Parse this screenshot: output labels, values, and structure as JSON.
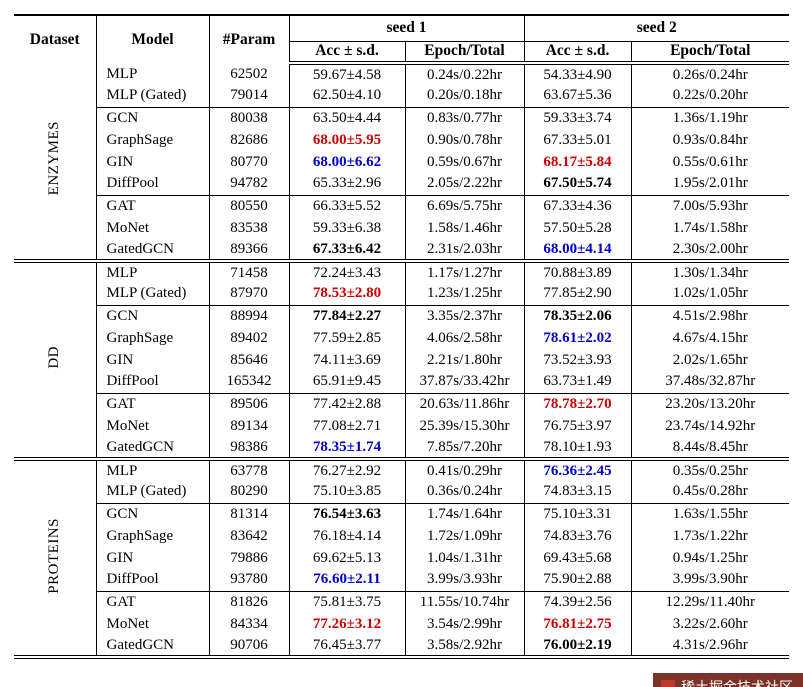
{
  "header": {
    "dataset": "Dataset",
    "model": "Model",
    "param": "#Param",
    "seed1": "seed 1",
    "seed2": "seed 2",
    "acc_label": "Acc ± s.d.",
    "epoch_label": "Epoch/Total"
  },
  "colors": {
    "best_red": "#cc0000",
    "runnerup_blue": "#0000cc"
  },
  "watermark": {
    "text": "稀土掘金技术社区"
  },
  "groups": [
    {
      "dataset": "ENZYMES",
      "subgroups": [
        {
          "rows": [
            {
              "model": "MLP",
              "param": "62502",
              "s1_acc": "59.67±4.58",
              "s1_style": "normal",
              "s1_time": "0.24s/0.22hr",
              "s2_acc": "54.33±4.90",
              "s2_style": "normal",
              "s2_time": "0.26s/0.24hr"
            },
            {
              "model": "MLP (Gated)",
              "param": "79014",
              "s1_acc": "62.50±4.10",
              "s1_style": "normal",
              "s1_time": "0.20s/0.18hr",
              "s2_acc": "63.67±5.36",
              "s2_style": "normal",
              "s2_time": "0.22s/0.20hr"
            }
          ]
        },
        {
          "rows": [
            {
              "model": "GCN",
              "param": "80038",
              "s1_acc": "63.50±4.44",
              "s1_style": "normal",
              "s1_time": "0.83s/0.77hr",
              "s2_acc": "59.33±3.74",
              "s2_style": "normal",
              "s2_time": "1.36s/1.19hr"
            },
            {
              "model": "GraphSage",
              "param": "82686",
              "s1_acc": "68.00±5.95",
              "s1_style": "red",
              "s1_time": "0.90s/0.78hr",
              "s2_acc": "67.33±5.01",
              "s2_style": "normal",
              "s2_time": "0.93s/0.84hr"
            },
            {
              "model": "GIN",
              "param": "80770",
              "s1_acc": "68.00±6.62",
              "s1_style": "blue",
              "s1_time": "0.59s/0.67hr",
              "s2_acc": "68.17±5.84",
              "s2_style": "red",
              "s2_time": "0.55s/0.61hr"
            },
            {
              "model": "DiffPool",
              "param": "94782",
              "s1_acc": "65.33±2.96",
              "s1_style": "normal",
              "s1_time": "2.05s/2.22hr",
              "s2_acc": "67.50±5.74",
              "s2_style": "bold",
              "s2_time": "1.95s/2.01hr"
            }
          ]
        },
        {
          "rows": [
            {
              "model": "GAT",
              "param": "80550",
              "s1_acc": "66.33±5.52",
              "s1_style": "normal",
              "s1_time": "6.69s/5.75hr",
              "s2_acc": "67.33±4.36",
              "s2_style": "normal",
              "s2_time": "7.00s/5.93hr"
            },
            {
              "model": "MoNet",
              "param": "83538",
              "s1_acc": "59.33±6.38",
              "s1_style": "normal",
              "s1_time": "1.58s/1.46hr",
              "s2_acc": "57.50±5.28",
              "s2_style": "normal",
              "s2_time": "1.74s/1.58hr"
            },
            {
              "model": "GatedGCN",
              "param": "89366",
              "s1_acc": "67.33±6.42",
              "s1_style": "bold",
              "s1_time": "2.31s/2.03hr",
              "s2_acc": "68.00±4.14",
              "s2_style": "blue",
              "s2_time": "2.30s/2.00hr"
            }
          ]
        }
      ]
    },
    {
      "dataset": "DD",
      "subgroups": [
        {
          "rows": [
            {
              "model": "MLP",
              "param": "71458",
              "s1_acc": "72.24±3.43",
              "s1_style": "normal",
              "s1_time": "1.17s/1.27hr",
              "s2_acc": "70.88±3.89",
              "s2_style": "normal",
              "s2_time": "1.30s/1.34hr"
            },
            {
              "model": "MLP (Gated)",
              "param": "87970",
              "s1_acc": "78.53±2.80",
              "s1_style": "red",
              "s1_time": "1.23s/1.25hr",
              "s2_acc": "77.85±2.90",
              "s2_style": "normal",
              "s2_time": "1.02s/1.05hr"
            }
          ]
        },
        {
          "rows": [
            {
              "model": "GCN",
              "param": "88994",
              "s1_acc": "77.84±2.27",
              "s1_style": "bold",
              "s1_time": "3.35s/2.37hr",
              "s2_acc": "78.35±2.06",
              "s2_style": "bold",
              "s2_time": "4.51s/2.98hr"
            },
            {
              "model": "GraphSage",
              "param": "89402",
              "s1_acc": "77.59±2.85",
              "s1_style": "normal",
              "s1_time": "4.06s/2.58hr",
              "s2_acc": "78.61±2.02",
              "s2_style": "blue",
              "s2_time": "4.67s/4.15hr"
            },
            {
              "model": "GIN",
              "param": "85646",
              "s1_acc": "74.11±3.69",
              "s1_style": "normal",
              "s1_time": "2.21s/1.80hr",
              "s2_acc": "73.52±3.93",
              "s2_style": "normal",
              "s2_time": "2.02s/1.65hr"
            },
            {
              "model": "DiffPool",
              "param": "165342",
              "s1_acc": "65.91±9.45",
              "s1_style": "normal",
              "s1_time": "37.87s/33.42hr",
              "s2_acc": "63.73±1.49",
              "s2_style": "normal",
              "s2_time": "37.48s/32.87hr"
            }
          ]
        },
        {
          "rows": [
            {
              "model": "GAT",
              "param": "89506",
              "s1_acc": "77.42±2.88",
              "s1_style": "normal",
              "s1_time": "20.63s/11.86hr",
              "s2_acc": "78.78±2.70",
              "s2_style": "red",
              "s2_time": "23.20s/13.20hr"
            },
            {
              "model": "MoNet",
              "param": "89134",
              "s1_acc": "77.08±2.71",
              "s1_style": "normal",
              "s1_time": "25.39s/15.30hr",
              "s2_acc": "76.75±3.97",
              "s2_style": "normal",
              "s2_time": "23.74s/14.92hr"
            },
            {
              "model": "GatedGCN",
              "param": "98386",
              "s1_acc": "78.35±1.74",
              "s1_style": "blue",
              "s1_time": "7.85s/7.20hr",
              "s2_acc": "78.10±1.93",
              "s2_style": "normal",
              "s2_time": "8.44s/8.45hr"
            }
          ]
        }
      ]
    },
    {
      "dataset": "PROTEINS",
      "subgroups": [
        {
          "rows": [
            {
              "model": "MLP",
              "param": "63778",
              "s1_acc": "76.27±2.92",
              "s1_style": "normal",
              "s1_time": "0.41s/0.29hr",
              "s2_acc": "76.36±2.45",
              "s2_style": "blue",
              "s2_time": "0.35s/0.25hr"
            },
            {
              "model": "MLP (Gated)",
              "param": "80290",
              "s1_acc": "75.10±3.85",
              "s1_style": "normal",
              "s1_time": "0.36s/0.24hr",
              "s2_acc": "74.83±3.15",
              "s2_style": "normal",
              "s2_time": "0.45s/0.28hr"
            }
          ]
        },
        {
          "rows": [
            {
              "model": "GCN",
              "param": "81314",
              "s1_acc": "76.54±3.63",
              "s1_style": "bold",
              "s1_time": "1.74s/1.64hr",
              "s2_acc": "75.10±3.31",
              "s2_style": "normal",
              "s2_time": "1.63s/1.55hr"
            },
            {
              "model": "GraphSage",
              "param": "83642",
              "s1_acc": "76.18±4.14",
              "s1_style": "normal",
              "s1_time": "1.72s/1.09hr",
              "s2_acc": "74.83±3.76",
              "s2_style": "normal",
              "s2_time": "1.73s/1.22hr"
            },
            {
              "model": "GIN",
              "param": "79886",
              "s1_acc": "69.62±5.13",
              "s1_style": "normal",
              "s1_time": "1.04s/1.31hr",
              "s2_acc": "69.43±5.68",
              "s2_style": "normal",
              "s2_time": "0.94s/1.25hr"
            },
            {
              "model": "DiffPool",
              "param": "93780",
              "s1_acc": "76.60±2.11",
              "s1_style": "blue",
              "s1_time": "3.99s/3.93hr",
              "s2_acc": "75.90±2.88",
              "s2_style": "normal",
              "s2_time": "3.99s/3.90hr"
            }
          ]
        },
        {
          "rows": [
            {
              "model": "GAT",
              "param": "81826",
              "s1_acc": "75.81±3.75",
              "s1_style": "normal",
              "s1_time": "11.55s/10.74hr",
              "s2_acc": "74.39±2.56",
              "s2_style": "normal",
              "s2_time": "12.29s/11.40hr"
            },
            {
              "model": "MoNet",
              "param": "84334",
              "s1_acc": "77.26±3.12",
              "s1_style": "red",
              "s1_time": "3.54s/2.99hr",
              "s2_acc": "76.81±2.75",
              "s2_style": "red",
              "s2_time": "3.22s/2.60hr"
            },
            {
              "model": "GatedGCN",
              "param": "90706",
              "s1_acc": "76.45±3.77",
              "s1_style": "normal",
              "s1_time": "3.58s/2.92hr",
              "s2_acc": "76.00±2.19",
              "s2_style": "bold",
              "s2_time": "4.31s/2.96hr"
            }
          ]
        }
      ]
    }
  ]
}
